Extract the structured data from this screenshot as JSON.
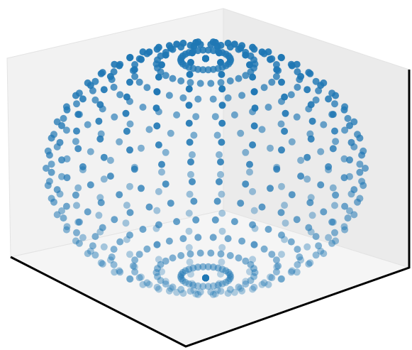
{
  "chart_data": {
    "type": "sphere3d",
    "color": "#1f77b4",
    "elev": 30,
    "azim": -60,
    "phi": [
      0,
      9,
      18,
      27,
      36,
      45,
      54,
      63,
      72,
      81,
      90,
      99,
      108,
      117,
      126,
      135,
      144,
      153,
      162,
      171,
      180
    ],
    "theta": [
      0,
      12,
      24,
      36,
      48,
      60,
      72,
      84,
      96,
      108,
      120,
      132,
      144,
      156,
      168,
      180,
      192,
      204,
      216,
      228,
      240,
      252,
      264,
      276,
      288,
      300,
      312,
      324,
      336,
      348
    ]
  }
}
